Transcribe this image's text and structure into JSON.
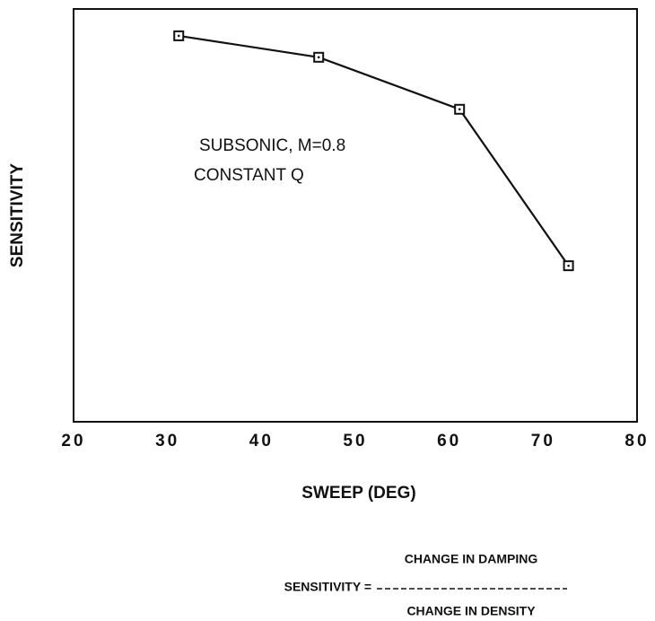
{
  "chart_data": {
    "type": "line",
    "x": [
      31.2,
      46.1,
      61.1,
      72.7
    ],
    "values": [
      0.935,
      0.883,
      0.757,
      0.378
    ],
    "color": "#111111",
    "xlim": [
      20,
      80
    ],
    "xticks": [
      20,
      30,
      40,
      50,
      60,
      70,
      80
    ],
    "ylim": [
      0,
      1
    ],
    "xlabel": "SWEEP (DEG)",
    "ylabel": "SENSITIVITY",
    "annotations": [
      "SUBSONIC, M=0.8",
      "CONSTANT Q"
    ],
    "formula": {
      "lhs": "SENSITIVITY =",
      "numerator": "CHANGE IN DAMPING",
      "denominator": "CHANGE IN DENSITY"
    }
  }
}
